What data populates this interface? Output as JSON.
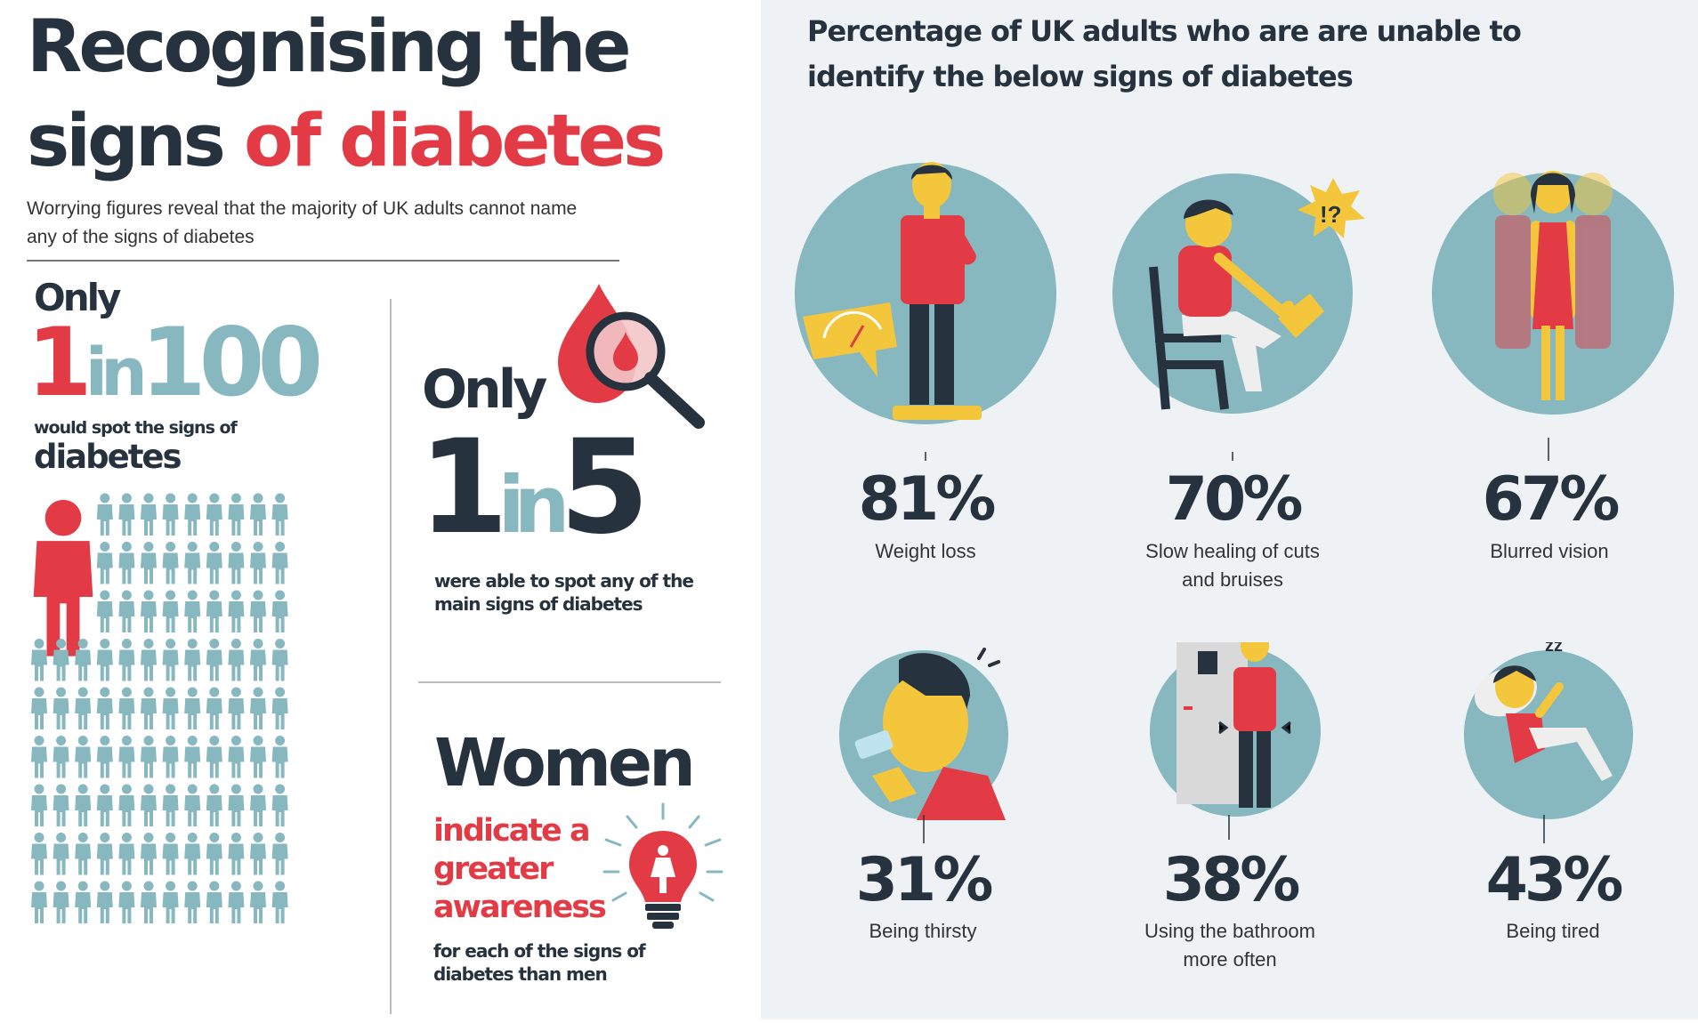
{
  "left": {
    "title_line1": "Recognising the",
    "title_line2_a": "signs ",
    "title_line2_b": "of diabetes",
    "subtitle": "Worrying figures reveal that the majority of UK adults cannot name any of the signs of diabetes",
    "stat1": {
      "only": "Only",
      "num": "1",
      "in": "in",
      "den": "100",
      "caption_a": "would spot the signs of",
      "caption_b": "diabetes",
      "red_figures": 1,
      "total_figures": 100
    },
    "stat2": {
      "only": "Only",
      "num": "1",
      "in": "in",
      "den": "5",
      "caption": "were able to spot any of the main signs of diabetes"
    },
    "women": {
      "title": "Women",
      "highlight": "indicate a greater awareness",
      "caption": "for each of the signs of diabetes than men"
    }
  },
  "right": {
    "title": "Percentage of UK adults who are are unable to identify the below signs of diabetes",
    "signs": [
      {
        "percent": "81%",
        "label": "Weight loss",
        "icon": "man-on-scale-icon"
      },
      {
        "percent": "70%",
        "label": "Slow healing of cuts and bruises",
        "icon": "sore-foot-icon"
      },
      {
        "percent": "67%",
        "label": "Blurred vision",
        "icon": "blurred-woman-icon"
      },
      {
        "percent": "31%",
        "label": "Being thirsty",
        "icon": "drinking-icon"
      },
      {
        "percent": "38%",
        "label": "Using the bathroom more often",
        "icon": "bathroom-icon"
      },
      {
        "percent": "43%",
        "label": "Being tired",
        "icon": "sleeping-icon"
      }
    ]
  },
  "colors": {
    "dark": "#26323d",
    "red": "#e23b45",
    "teal": "#87b7bf",
    "panel": "#eef2f5"
  }
}
